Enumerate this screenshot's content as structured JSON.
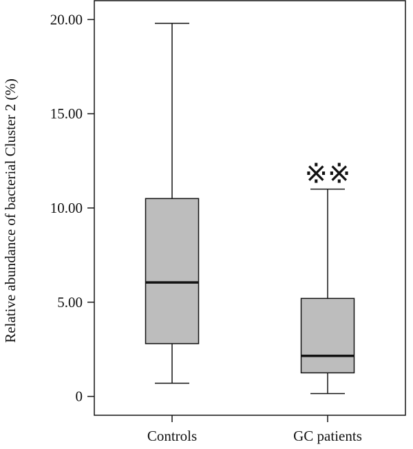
{
  "chart_data": {
    "type": "box",
    "title": "",
    "xlabel": "",
    "ylabel": "Relative abundance of bacterial Cluster 2 (%)",
    "ylim": [
      -1.0,
      21.0
    ],
    "y_ticks": [
      0,
      5,
      10,
      15,
      20
    ],
    "y_tick_labels": [
      "0",
      "5.00",
      "10.00",
      "15.00",
      "20.00"
    ],
    "categories": [
      "Controls",
      "GC patients"
    ],
    "boxes": [
      {
        "category": "Controls",
        "whisker_low": 0.7,
        "q1": 2.8,
        "median": 6.05,
        "q3": 10.5,
        "whisker_high": 19.8,
        "annotation": ""
      },
      {
        "category": "GC patients",
        "whisker_low": 0.15,
        "q1": 1.25,
        "median": 2.15,
        "q3": 5.2,
        "whisker_high": 11.0,
        "annotation": "※※"
      }
    ],
    "box_fill": "#bdbdbd",
    "line_color": "#111111",
    "grid": false,
    "legend": "none"
  }
}
